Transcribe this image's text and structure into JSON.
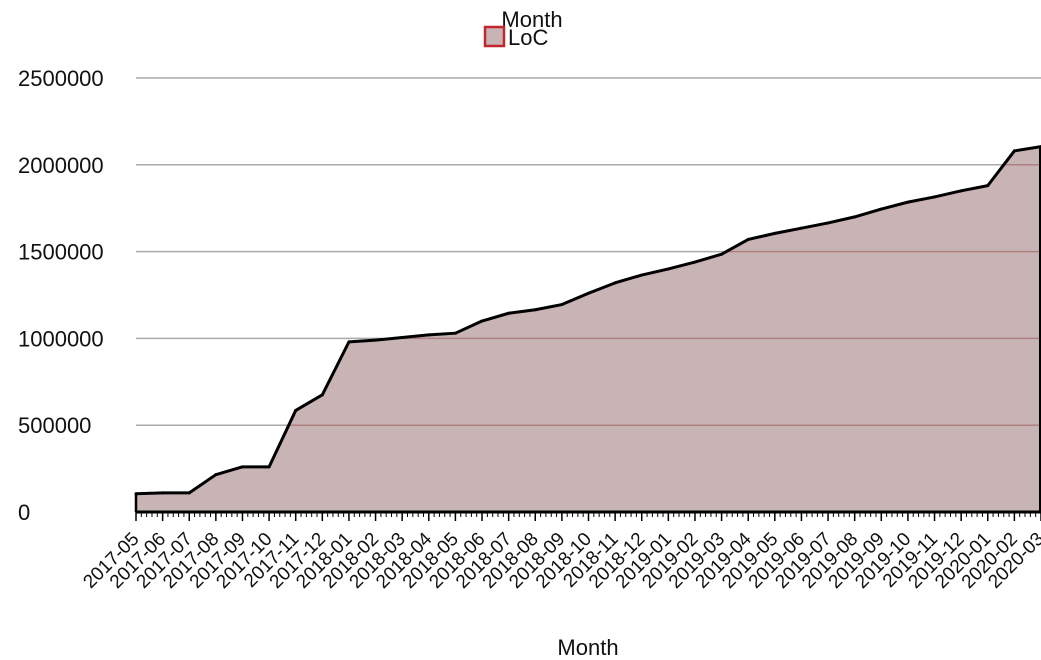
{
  "chart_data": {
    "type": "area",
    "title": "Month",
    "xlabel": "Month",
    "ylabel": "",
    "legend_position": "top-center",
    "grid": true,
    "ylim": [
      0,
      2500000
    ],
    "y_ticks": [
      "0",
      "500000",
      "1000000",
      "1500000",
      "2000000",
      "2500000"
    ],
    "categories": [
      "2017-05",
      "2017-06",
      "2017-07",
      "2017-08",
      "2017-09",
      "2017-10",
      "2017-11",
      "2017-12",
      "2018-01",
      "2018-02",
      "2018-03",
      "2018-04",
      "2018-05",
      "2018-06",
      "2018-07",
      "2018-08",
      "2018-09",
      "2018-10",
      "2018-11",
      "2018-12",
      "2019-01",
      "2019-02",
      "2019-03",
      "2019-04",
      "2019-05",
      "2019-06",
      "2019-07",
      "2019-08",
      "2019-09",
      "2019-10",
      "2019-11",
      "2019-12",
      "2020-01",
      "2020-02",
      "2020-03"
    ],
    "series": [
      {
        "name": "LoC",
        "values": [
          105000,
          110000,
          110000,
          215000,
          260000,
          260000,
          585000,
          675000,
          980000,
          990000,
          1005000,
          1020000,
          1030000,
          1100000,
          1145000,
          1165000,
          1195000,
          1260000,
          1320000,
          1365000,
          1400000,
          1440000,
          1485000,
          1570000,
          1605000,
          1635000,
          1665000,
          1700000,
          1745000,
          1785000,
          1815000,
          1850000,
          1880000,
          2080000,
          2105000
        ],
        "fill_color": "#c8b3b5",
        "line_color": "#000000",
        "legend_fill": "#c8b3b5",
        "legend_border": "#c0282d"
      }
    ],
    "gridline_color": "#aaaaaa",
    "gridline_tint_color": "#b08080"
  }
}
